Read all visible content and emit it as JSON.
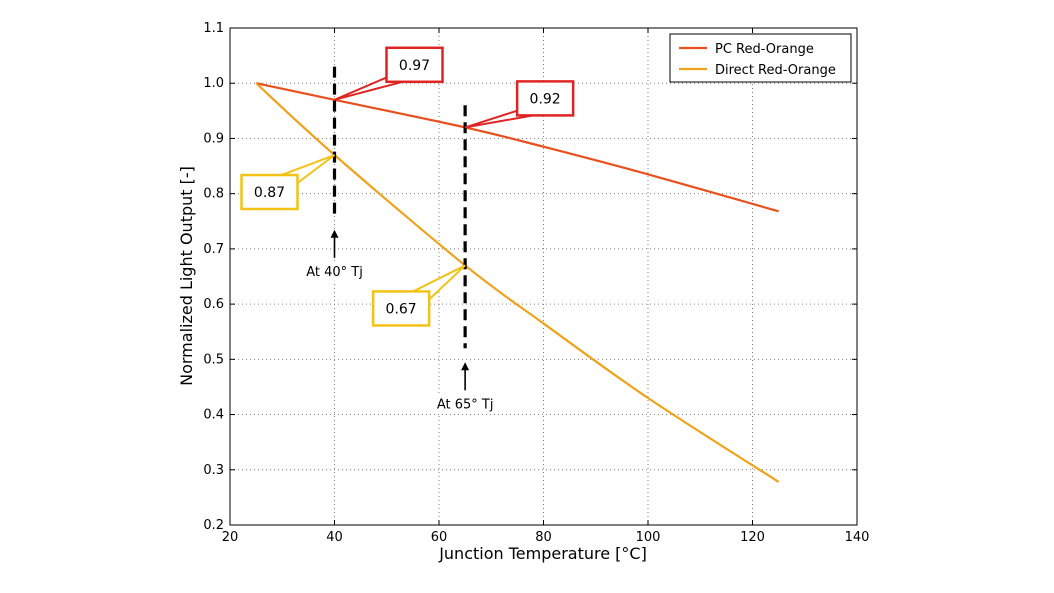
{
  "chart_data": {
    "type": "line",
    "title": "",
    "xlabel": "Junction Temperature [°C]",
    "ylabel": "Normalized Light Output [-]",
    "xlim": [
      20,
      140
    ],
    "ylim": [
      0.2,
      1.1
    ],
    "xticks": [
      20,
      40,
      60,
      80,
      100,
      120,
      140
    ],
    "yticks": [
      0.2,
      0.3,
      0.4,
      0.5,
      0.6,
      0.7,
      0.8,
      0.9,
      1.0,
      1.1
    ],
    "xtick_labels": [
      "20",
      "40",
      "60",
      "80",
      "100",
      "120",
      "140"
    ],
    "ytick_labels": [
      "0.2",
      "0.3",
      "0.4",
      "0.5",
      "0.6",
      "0.7",
      "0.8",
      "0.9",
      "1.0",
      "1.1"
    ],
    "grid": true,
    "legend_position": "top-right",
    "series": [
      {
        "name": "PC Red-Orange",
        "color": "#e8501e",
        "x": [
          25,
          40,
          65,
          80,
          100,
          125
        ],
        "y": [
          1.0,
          0.97,
          0.92,
          0.885,
          0.835,
          0.768
        ]
      },
      {
        "name": "Direct Red-Orange",
        "color": "#f0a21a",
        "x": [
          25,
          40,
          65,
          80,
          100,
          125
        ],
        "y": [
          1.0,
          0.87,
          0.67,
          0.565,
          0.43,
          0.278
        ]
      }
    ],
    "markers": [
      {
        "x": 40,
        "label": "At 40° Tj",
        "ymin": 0.76,
        "ymax": 1.03
      },
      {
        "x": 65,
        "label": "At 65° Tj",
        "ymin": 0.52,
        "ymax": 0.96
      }
    ],
    "callouts": [
      {
        "text": "0.97",
        "x": 40,
        "y": 0.97,
        "series": "PC Red-Orange",
        "border_color": "#e02424"
      },
      {
        "text": "0.92",
        "x": 65,
        "y": 0.92,
        "series": "PC Red-Orange",
        "border_color": "#e02424"
      },
      {
        "text": "0.87",
        "x": 40,
        "y": 0.87,
        "series": "Direct Red-Orange",
        "border_color": "#f2c316"
      },
      {
        "text": "0.67",
        "x": 65,
        "y": 0.67,
        "series": "Direct Red-Orange",
        "border_color": "#f2c316"
      }
    ]
  }
}
